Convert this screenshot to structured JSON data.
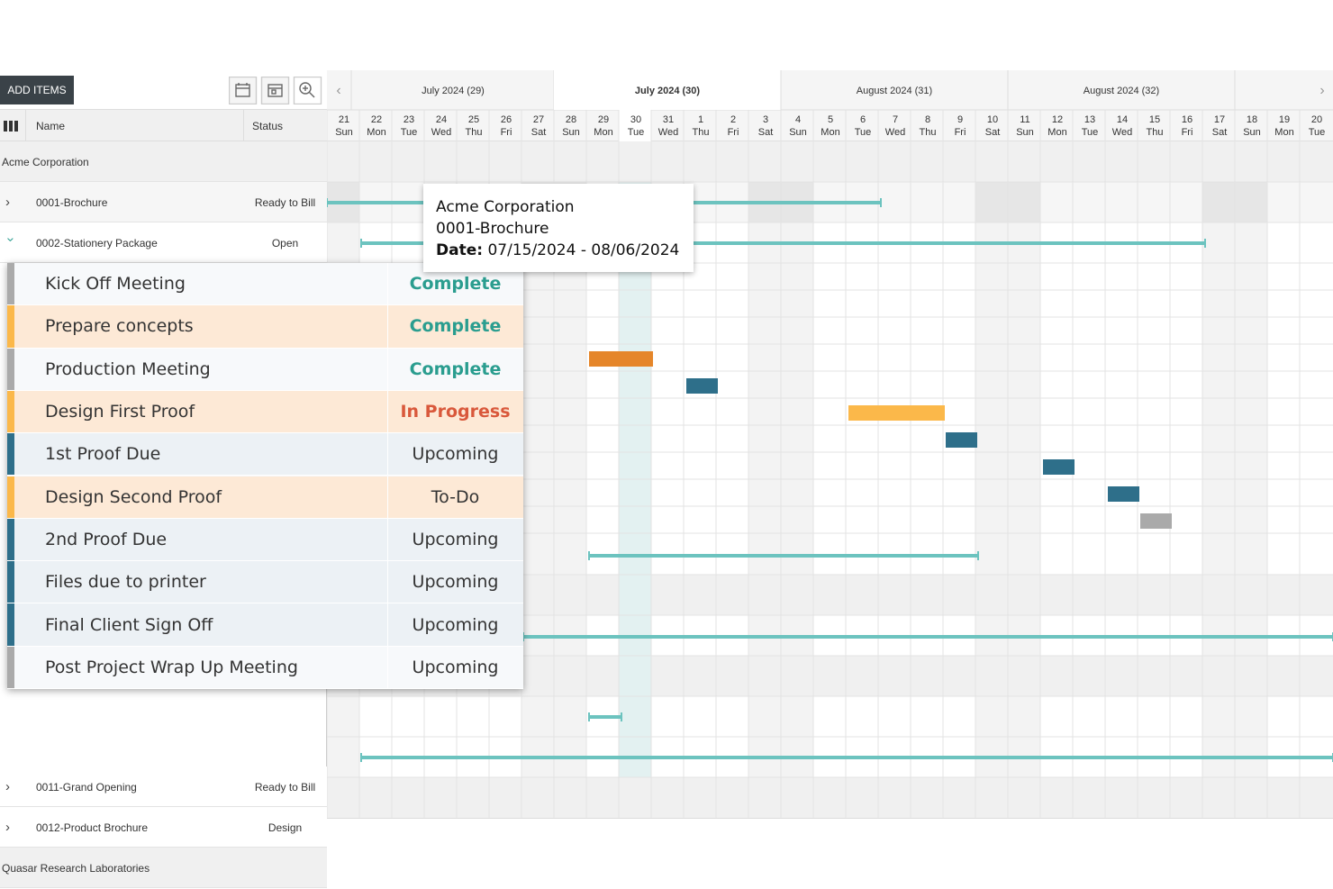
{
  "toolbar": {
    "add_button": "ADD ITEMS"
  },
  "columns": {
    "name": "Name",
    "status": "Status"
  },
  "weeks": [
    "July 2024 (29)",
    "July 2024 (30)",
    "August 2024 (31)",
    "August 2024 (32)"
  ],
  "days": [
    {
      "day": "21",
      "weekday": "Sun"
    },
    {
      "day": "22",
      "weekday": "Mon"
    },
    {
      "day": "23",
      "weekday": "Tue"
    },
    {
      "day": "24",
      "weekday": "Wed"
    },
    {
      "day": "25",
      "weekday": "Thu"
    },
    {
      "day": "26",
      "weekday": "Fri"
    },
    {
      "day": "27",
      "weekday": "Sat"
    },
    {
      "day": "28",
      "weekday": "Sun"
    },
    {
      "day": "29",
      "weekday": "Mon"
    },
    {
      "day": "30",
      "weekday": "Tue"
    },
    {
      "day": "31",
      "weekday": "Wed"
    },
    {
      "day": "1",
      "weekday": "Thu"
    },
    {
      "day": "2",
      "weekday": "Fri"
    },
    {
      "day": "3",
      "weekday": "Sat"
    },
    {
      "day": "4",
      "weekday": "Sun"
    },
    {
      "day": "5",
      "weekday": "Mon"
    },
    {
      "day": "6",
      "weekday": "Tue"
    },
    {
      "day": "7",
      "weekday": "Wed"
    },
    {
      "day": "8",
      "weekday": "Thu"
    },
    {
      "day": "9",
      "weekday": "Fri"
    },
    {
      "day": "10",
      "weekday": "Sat"
    },
    {
      "day": "11",
      "weekday": "Sun"
    },
    {
      "day": "12",
      "weekday": "Mon"
    },
    {
      "day": "13",
      "weekday": "Tue"
    },
    {
      "day": "14",
      "weekday": "Wed"
    },
    {
      "day": "15",
      "weekday": "Thu"
    },
    {
      "day": "16",
      "weekday": "Fri"
    },
    {
      "day": "17",
      "weekday": "Sat"
    },
    {
      "day": "18",
      "weekday": "Sun"
    },
    {
      "day": "19",
      "weekday": "Mon"
    },
    {
      "day": "20",
      "weekday": "Tue"
    }
  ],
  "rows": [
    {
      "name": "Acme Corporation"
    },
    {
      "name": "0001-Brochure",
      "status": "Ready to Bill"
    },
    {
      "name": "0002-Stationery Package",
      "status": "Open"
    },
    {
      "name": "0011-Grand Opening",
      "status": "Ready to Bill"
    },
    {
      "name": "0012-Product Brochure",
      "status": "Design"
    },
    {
      "name": "Quasar Research Laboratories"
    }
  ],
  "tasks": [
    {
      "name": "Kick Off Meeting",
      "status": "Complete"
    },
    {
      "name": "Prepare concepts",
      "status": "Complete"
    },
    {
      "name": "Production Meeting",
      "status": "Complete"
    },
    {
      "name": "Design First Proof",
      "status": "In Progress"
    },
    {
      "name": "1st Proof Due",
      "status": "Upcoming"
    },
    {
      "name": "Design Second Proof",
      "status": "To-Do"
    },
    {
      "name": "2nd Proof Due",
      "status": "Upcoming"
    },
    {
      "name": "Files due to printer",
      "status": "Upcoming"
    },
    {
      "name": "Final Client Sign Off",
      "status": "Upcoming"
    },
    {
      "name": "Post Project Wrap Up Meeting",
      "status": "Upcoming"
    }
  ],
  "tooltip": {
    "line1": "Acme Corporation",
    "line2": "0001-Brochure",
    "label": "Date:",
    "value": "07/15/2024 - 08/06/2024"
  }
}
